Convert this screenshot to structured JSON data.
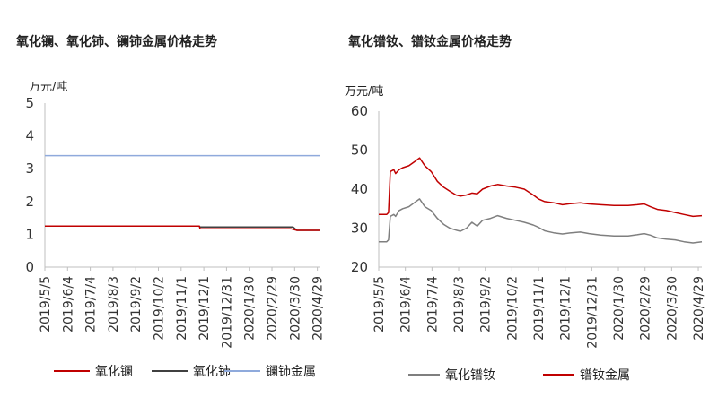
{
  "colors": {
    "lanthanum_oxide": "#c00000",
    "cerium_oxide": "#404040",
    "la_ce_metal": "#8faadc",
    "pr_nd_oxide": "#7f7f7f",
    "pr_nd_metal": "#c00000"
  },
  "chart_data": [
    {
      "type": "line",
      "title": "氧化镧、氧化铈、镧铈金属价格走势",
      "unit_label": "万元/吨",
      "ylim": [
        0,
        5
      ],
      "yticks": [
        "0",
        "1",
        "2",
        "3",
        "4",
        "5"
      ],
      "xticks": [
        "2019/5/5",
        "2019/6/4",
        "2019/7/4",
        "2019/8/3",
        "2019/9/2",
        "2019/10/2",
        "2019/11/1",
        "2019/12/1",
        "2019/12/31",
        "2020/1/30",
        "2020/2/29",
        "2020/3/30",
        "2020/4/29"
      ],
      "legend": [
        "氧化镧",
        "氧化铈",
        "镧铈金属"
      ],
      "series": [
        {
          "name": "氧化镧",
          "points": [
            [
              "2019/5/5",
              1.25
            ],
            [
              "2019/11/25",
              1.25
            ],
            [
              "2019/11/26",
              1.17
            ],
            [
              "2019/12/10",
              1.17
            ],
            [
              "2020/1/15",
              1.17
            ],
            [
              "2020/3/5",
              1.17
            ],
            [
              "2020/3/25",
              1.17
            ],
            [
              "2020/4/2",
              1.12
            ],
            [
              "2020/5/3",
              1.12
            ]
          ]
        },
        {
          "name": "氧化铈",
          "points": [
            [
              "2019/5/5",
              1.25
            ],
            [
              "2019/11/25",
              1.25
            ],
            [
              "2019/11/26",
              1.22
            ],
            [
              "2020/3/28",
              1.22
            ],
            [
              "2020/4/2",
              1.12
            ],
            [
              "2020/5/3",
              1.12
            ]
          ]
        },
        {
          "name": "镧铈金属",
          "points": [
            [
              "2019/5/5",
              3.4
            ],
            [
              "2020/5/3",
              3.4
            ]
          ]
        }
      ]
    },
    {
      "type": "line",
      "title": "氧化镨钕、镨钕金属价格走势",
      "unit_label": "万元/吨",
      "ylim": [
        20,
        60
      ],
      "yticks": [
        "20",
        "30",
        "40",
        "50",
        "60"
      ],
      "xticks": [
        "2019/5/5",
        "2019/6/4",
        "2019/7/4",
        "2019/8/3",
        "2019/9/2",
        "2019/10/2",
        "2019/11/1",
        "2019/12/1",
        "2019/12/31",
        "2020/1/30",
        "2020/2/29",
        "2020/3/30",
        "2020/4/29"
      ],
      "legend": [
        "氧化镨钕",
        "镨钕金属"
      ],
      "series": [
        {
          "name": "氧化镨钕",
          "points": [
            [
              "2019/5/5",
              26.5
            ],
            [
              "2019/5/14",
              26.5
            ],
            [
              "2019/5/16",
              27
            ],
            [
              "2019/5/18",
              33
            ],
            [
              "2019/5/22",
              33.5
            ],
            [
              "2019/5/24",
              33
            ],
            [
              "2019/5/28",
              34.5
            ],
            [
              "2019/6/1",
              35
            ],
            [
              "2019/6/8",
              35.5
            ],
            [
              "2019/6/14",
              36.5
            ],
            [
              "2019/6/20",
              37.5
            ],
            [
              "2019/6/26",
              35.5
            ],
            [
              "2019/7/3",
              34.5
            ],
            [
              "2019/7/10",
              32.5
            ],
            [
              "2019/7/17",
              31
            ],
            [
              "2019/7/24",
              30
            ],
            [
              "2019/7/31",
              29.5
            ],
            [
              "2019/8/5",
              29.2
            ],
            [
              "2019/8/12",
              30
            ],
            [
              "2019/8/18",
              31.5
            ],
            [
              "2019/8/24",
              30.5
            ],
            [
              "2019/8/30",
              32
            ],
            [
              "2019/9/8",
              32.5
            ],
            [
              "2019/9/16",
              33.2
            ],
            [
              "2019/9/26",
              32.5
            ],
            [
              "2019/10/6",
              32
            ],
            [
              "2019/10/16",
              31.5
            ],
            [
              "2019/10/26",
              30.8
            ],
            [
              "2019/11/1",
              30.2
            ],
            [
              "2019/11/8",
              29.3
            ],
            [
              "2019/11/18",
              28.8
            ],
            [
              "2019/11/28",
              28.5
            ],
            [
              "2019/12/8",
              28.8
            ],
            [
              "2019/12/18",
              29
            ],
            [
              "2019/12/28",
              28.6
            ],
            [
              "2020/1/10",
              28.2
            ],
            [
              "2020/1/25",
              28
            ],
            [
              "2020/2/10",
              28
            ],
            [
              "2020/2/20",
              28.3
            ],
            [
              "2020/2/28",
              28.6
            ],
            [
              "2020/3/6",
              28.2
            ],
            [
              "2020/3/14",
              27.5
            ],
            [
              "2020/3/24",
              27.2
            ],
            [
              "2020/4/3",
              27
            ],
            [
              "2020/4/13",
              26.5
            ],
            [
              "2020/4/23",
              26.2
            ],
            [
              "2020/5/3",
              26.5
            ]
          ]
        },
        {
          "name": "镨钕金属",
          "points": [
            [
              "2019/5/5",
              33.5
            ],
            [
              "2019/5/14",
              33.5
            ],
            [
              "2019/5/16",
              34
            ],
            [
              "2019/5/18",
              44.5
            ],
            [
              "2019/5/22",
              45
            ],
            [
              "2019/5/24",
              44
            ],
            [
              "2019/5/28",
              45
            ],
            [
              "2019/6/1",
              45.5
            ],
            [
              "2019/6/8",
              46
            ],
            [
              "2019/6/14",
              47
            ],
            [
              "2019/6/20",
              48
            ],
            [
              "2019/6/26",
              46
            ],
            [
              "2019/7/3",
              44.5
            ],
            [
              "2019/7/10",
              42
            ],
            [
              "2019/7/17",
              40.5
            ],
            [
              "2019/7/24",
              39.5
            ],
            [
              "2019/7/31",
              38.5
            ],
            [
              "2019/8/5",
              38.2
            ],
            [
              "2019/8/12",
              38.5
            ],
            [
              "2019/8/18",
              39
            ],
            [
              "2019/8/24",
              38.8
            ],
            [
              "2019/8/30",
              40
            ],
            [
              "2019/9/8",
              40.8
            ],
            [
              "2019/9/16",
              41.2
            ],
            [
              "2019/9/26",
              40.8
            ],
            [
              "2019/10/6",
              40.5
            ],
            [
              "2019/10/16",
              40
            ],
            [
              "2019/10/26",
              38.5
            ],
            [
              "2019/11/1",
              37.5
            ],
            [
              "2019/11/8",
              36.8
            ],
            [
              "2019/11/18",
              36.5
            ],
            [
              "2019/11/28",
              36
            ],
            [
              "2019/12/8",
              36.3
            ],
            [
              "2019/12/18",
              36.5
            ],
            [
              "2019/12/28",
              36.2
            ],
            [
              "2020/1/10",
              36
            ],
            [
              "2020/1/25",
              35.8
            ],
            [
              "2020/2/10",
              35.8
            ],
            [
              "2020/2/20",
              36
            ],
            [
              "2020/2/28",
              36.2
            ],
            [
              "2020/3/6",
              35.5
            ],
            [
              "2020/3/14",
              34.8
            ],
            [
              "2020/3/24",
              34.5
            ],
            [
              "2020/4/3",
              34
            ],
            [
              "2020/4/13",
              33.5
            ],
            [
              "2020/4/23",
              33
            ],
            [
              "2020/5/3",
              33.2
            ]
          ]
        }
      ]
    }
  ]
}
